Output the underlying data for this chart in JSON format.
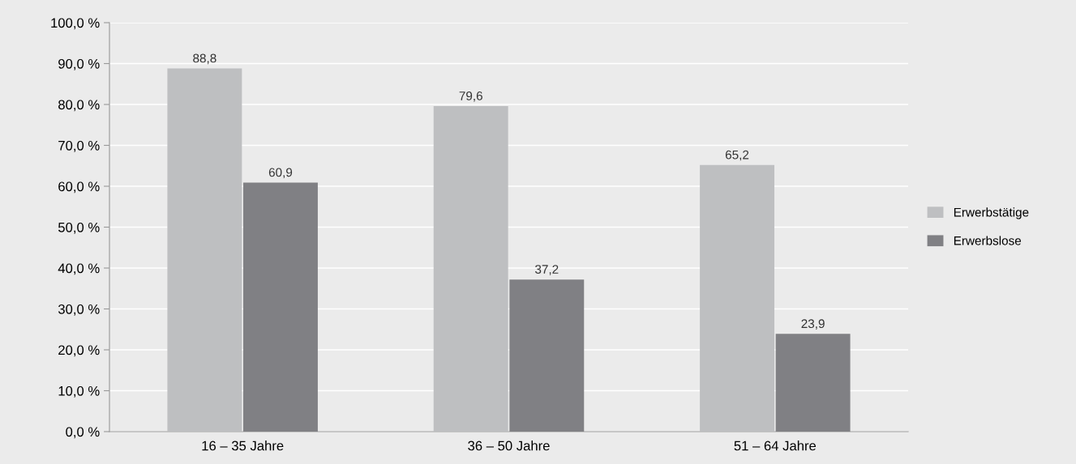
{
  "chart_data": {
    "type": "bar",
    "categories": [
      "16 – 35 Jahre",
      "36 – 50 Jahre",
      "51 – 64 Jahre"
    ],
    "series": [
      {
        "name": "Erwerbstätige",
        "color": "#bebfc1",
        "values": [
          88.8,
          79.6,
          65.2
        ],
        "value_labels": [
          "88,8",
          "79,6",
          "65,2"
        ]
      },
      {
        "name": "Erwerbslose",
        "color": "#808084",
        "values": [
          60.9,
          37.2,
          23.9
        ],
        "value_labels": [
          "60,9",
          "37,2",
          "23,9"
        ]
      }
    ],
    "ylim": [
      0,
      100
    ],
    "yticks": [
      {
        "value": 0,
        "label": "0,0 %"
      },
      {
        "value": 10,
        "label": "10,0 %"
      },
      {
        "value": 20,
        "label": "20,0 %"
      },
      {
        "value": 30,
        "label": "30,0 %"
      },
      {
        "value": 40,
        "label": "40,0 %"
      },
      {
        "value": 50,
        "label": "50,0 %"
      },
      {
        "value": 60,
        "label": "60,0 %"
      },
      {
        "value": 70,
        "label": "70,0 %"
      },
      {
        "value": 80,
        "label": "80,0 %"
      },
      {
        "value": 90,
        "label": "90,0 %"
      },
      {
        "value": 100,
        "label": "100,0 %"
      }
    ],
    "grid": "y",
    "legend": "right"
  }
}
